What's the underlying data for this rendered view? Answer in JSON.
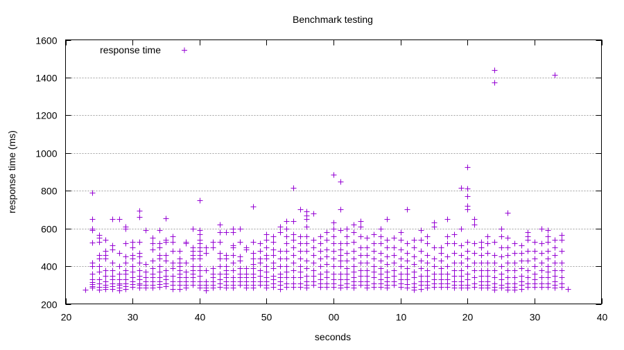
{
  "chart_data": {
    "type": "scatter",
    "title": "Benchmark testing",
    "xlabel": "seconds",
    "ylabel": "response time (ms)",
    "xlim": [
      20,
      100
    ],
    "ylim": [
      200,
      1600
    ],
    "x_ticks": [
      20,
      30,
      40,
      50,
      60,
      70,
      80,
      90,
      100
    ],
    "x_tick_labels": [
      "20",
      "30",
      "40",
      "50",
      "00",
      "10",
      "20",
      "30",
      "40"
    ],
    "y_ticks": [
      200,
      400,
      600,
      800,
      1000,
      1200,
      1400,
      1600
    ],
    "y_tick_labels": [
      "200",
      "400",
      "600",
      "800",
      "1000",
      "1200",
      "1400",
      "1600"
    ],
    "grid": "horizontal dotted",
    "legend": {
      "position": "top-left",
      "entries": [
        "response time"
      ]
    },
    "series": [
      {
        "name": "response time",
        "color": "#9400d3",
        "marker": "plus",
        "points_by_second": [
          {
            "x": 23,
            "y": [
              275
            ]
          },
          {
            "x": 24,
            "y": [
              790,
              650,
              600,
              590,
              525,
              420,
              400,
              360,
              330,
              315,
              305,
              295,
              285
            ]
          },
          {
            "x": 25,
            "y": [
              565,
              550,
              530,
              460,
              440,
              400,
              370,
              330,
              310,
              290,
              275
            ]
          },
          {
            "x": 26,
            "y": [
              540,
              480,
              460,
              440,
              380,
              350,
              320,
              300,
              290,
              280
            ]
          },
          {
            "x": 27,
            "y": [
              650,
              510,
              490,
              420,
              380,
              350,
              330,
              310,
              295,
              280
            ]
          },
          {
            "x": 28,
            "y": [
              650,
              470,
              400,
              360,
              330,
              310,
              300,
              285,
              270
            ]
          },
          {
            "x": 29,
            "y": [
              610,
              600,
              520,
              450,
              420,
              380,
              360,
              330,
              310,
              295,
              280
            ]
          },
          {
            "x": 30,
            "y": [
              530,
              500,
              460,
              440,
              400,
              370,
              340,
              320,
              305,
              290
            ]
          },
          {
            "x": 31,
            "y": [
              695,
              660,
              530,
              470,
              450,
              420,
              380,
              350,
              330,
              310,
              300,
              285
            ]
          },
          {
            "x": 32,
            "y": [
              590,
              410,
              370,
              340,
              320,
              300,
              285
            ]
          },
          {
            "x": 33,
            "y": [
              550,
              520,
              490,
              430,
              390,
              360,
              340,
              320,
              300,
              285
            ]
          },
          {
            "x": 34,
            "y": [
              590,
              520,
              500,
              460,
              440,
              400,
              370,
              340,
              320,
              305,
              290
            ]
          },
          {
            "x": 35,
            "y": [
              655,
              540,
              530,
              460,
              430,
              380,
              350,
              330,
              310,
              295
            ]
          },
          {
            "x": 36,
            "y": [
              560,
              530,
              480,
              420,
              390,
              350,
              320,
              300,
              280
            ]
          },
          {
            "x": 37,
            "y": [
              480,
              440,
              420,
              400,
              380,
              360,
              340,
              320,
              300,
              280
            ]
          },
          {
            "x": 38,
            "y": [
              530,
              520,
              420,
              370,
              340,
              320,
              300,
              285
            ]
          },
          {
            "x": 39,
            "y": [
              600,
              500,
              480,
              460,
              440,
              400,
              380,
              360,
              340,
              320,
              300
            ]
          },
          {
            "x": 40,
            "y": [
              750,
              590,
              570,
              540,
              520,
              500,
              480,
              460,
              440,
              400,
              380,
              350,
              320,
              300,
              285
            ]
          },
          {
            "x": 41,
            "y": [
              500,
              470,
              380,
              320,
              300,
              285,
              270
            ]
          },
          {
            "x": 42,
            "y": [
              530,
              500,
              390,
              360,
              340,
              320,
              300,
              285
            ]
          },
          {
            "x": 43,
            "y": [
              620,
              580,
              530,
              470,
              440,
              400,
              360,
              330,
              310,
              290
            ]
          },
          {
            "x": 44,
            "y": [
              580,
              460,
              440,
              400,
              380,
              360,
              340,
              320,
              300,
              285
            ]
          },
          {
            "x": 45,
            "y": [
              600,
              580,
              510,
              500,
              460,
              420,
              380,
              340,
              320,
              300,
              285
            ]
          },
          {
            "x": 46,
            "y": [
              600,
              530,
              450,
              430,
              390,
              360,
              340,
              320,
              300
            ]
          },
          {
            "x": 47,
            "y": [
              500,
              490,
              390,
              360,
              340,
              320,
              300,
              285
            ]
          },
          {
            "x": 48,
            "y": [
              715,
              530,
              470,
              440,
              410,
              390,
              360,
              340,
              320,
              300,
              285
            ]
          },
          {
            "x": 49,
            "y": [
              520,
              480,
              440,
              420,
              380,
              350,
              320,
              300
            ]
          },
          {
            "x": 50,
            "y": [
              570,
              540,
              500,
              460,
              440,
              400,
              370,
              340,
              320,
              300,
              285
            ]
          },
          {
            "x": 51,
            "y": [
              560,
              530,
              490,
              460,
              420,
              390,
              350,
              330,
              310,
              290
            ]
          },
          {
            "x": 52,
            "y": [
              610,
              580,
              480,
              440,
              400,
              360,
              340,
              320,
              300,
              280
            ]
          },
          {
            "x": 53,
            "y": [
              640,
              600,
              560,
              520,
              480,
              440,
              400,
              370,
              340,
              310,
              290
            ]
          },
          {
            "x": 54,
            "y": [
              815,
              640,
              570,
              540,
              500,
              460,
              420,
              380,
              340,
              310,
              290
            ]
          },
          {
            "x": 55,
            "y": [
              700,
              560,
              520,
              480,
              440,
              400,
              370,
              340,
              310,
              290
            ]
          },
          {
            "x": 56,
            "y": [
              690,
              670,
              650,
              610,
              560,
              520,
              480,
              430,
              390,
              350,
              320,
              300,
              285
            ]
          },
          {
            "x": 57,
            "y": [
              680,
              540,
              500,
              460,
              420,
              380,
              350,
              320,
              300
            ]
          },
          {
            "x": 58,
            "y": [
              560,
              520,
              480,
              440,
              400,
              360,
              330,
              310,
              290
            ]
          },
          {
            "x": 59,
            "y": [
              580,
              540,
              490,
              450,
              410,
              370,
              340,
              310,
              290
            ]
          },
          {
            "x": 60,
            "y": [
              885,
              630,
              600,
              560,
              520,
              480,
              440,
              400,
              360,
              330,
              310,
              290
            ]
          },
          {
            "x": 61,
            "y": [
              850,
              700,
              590,
              520,
              490,
              460,
              430,
              400,
              360,
              330,
              300,
              285
            ]
          },
          {
            "x": 62,
            "y": [
              600,
              560,
              520,
              470,
              430,
              390,
              360,
              330,
              310,
              290
            ]
          },
          {
            "x": 63,
            "y": [
              620,
              580,
              530,
              480,
              440,
              400,
              370,
              340,
              320,
              300,
              285
            ]
          },
          {
            "x": 64,
            "y": [
              640,
              610,
              560,
              500,
              460,
              420,
              380,
              350,
              320,
              300
            ]
          },
          {
            "x": 65,
            "y": [
              550,
              500,
              460,
              420,
              380,
              350,
              320,
              300,
              285
            ]
          },
          {
            "x": 66,
            "y": [
              570,
              520,
              480,
              440,
              400,
              370,
              340,
              310,
              290
            ]
          },
          {
            "x": 67,
            "y": [
              600,
              560,
              520,
              470,
              430,
              390,
              360,
              330,
              310,
              290
            ]
          },
          {
            "x": 68,
            "y": [
              650,
              540,
              500,
              450,
              410,
              370,
              340,
              320,
              300,
              285
            ]
          },
          {
            "x": 69,
            "y": [
              550,
              500,
              460,
              420,
              380,
              350,
              320,
              300
            ]
          },
          {
            "x": 70,
            "y": [
              580,
              540,
              490,
              440,
              400,
              360,
              330,
              310,
              290
            ]
          },
          {
            "x": 71,
            "y": [
              700,
              520,
              470,
              430,
              390,
              360,
              330,
              305,
              285
            ]
          },
          {
            "x": 72,
            "y": [
              540,
              500,
              450,
              410,
              370,
              340,
              310,
              290,
              275
            ]
          },
          {
            "x": 73,
            "y": [
              590,
              540,
              480,
              430,
              390,
              350,
              320,
              300,
              280
            ]
          },
          {
            "x": 74,
            "y": [
              560,
              520,
              460,
              420,
              380,
              350,
              320,
              300,
              285
            ]
          },
          {
            "x": 75,
            "y": [
              630,
              610,
              500,
              440,
              400,
              360,
              330,
              310,
              290
            ]
          },
          {
            "x": 76,
            "y": [
              500,
              470,
              430,
              390,
              360,
              330,
              310,
              290
            ]
          },
          {
            "x": 77,
            "y": [
              650,
              560,
              520,
              450,
              400,
              360,
              330,
              310,
              290
            ]
          },
          {
            "x": 78,
            "y": [
              570,
              520,
              470,
              420,
              380,
              350,
              320,
              300,
              285
            ]
          },
          {
            "x": 79,
            "y": [
              815,
              600,
              510,
              460,
              420,
              380,
              350,
              320,
              300,
              285
            ]
          },
          {
            "x": 80,
            "y": [
              925,
              810,
              770,
              720,
              700,
              530,
              480,
              440,
              400,
              360,
              330,
              300,
              285
            ]
          },
          {
            "x": 81,
            "y": [
              650,
              620,
              520,
              470,
              420,
              380,
              340,
              310,
              290
            ]
          },
          {
            "x": 82,
            "y": [
              530,
              500,
              460,
              420,
              380,
              350,
              320,
              300,
              285
            ]
          },
          {
            "x": 83,
            "y": [
              560,
              520,
              470,
              420,
              380,
              350,
              320,
              300,
              285
            ]
          },
          {
            "x": 84,
            "y": [
              1440,
              1375,
              530,
              460,
              420,
              380,
              340,
              310,
              290,
              275
            ]
          },
          {
            "x": 85,
            "y": [
              600,
              560,
              500,
              450,
              400,
              360,
              330,
              300,
              285
            ]
          },
          {
            "x": 86,
            "y": [
              685,
              550,
              500,
              460,
              420,
              380,
              340,
              310,
              290,
              275
            ]
          },
          {
            "x": 87,
            "y": [
              520,
              470,
              420,
              380,
              340,
              310,
              290,
              275
            ]
          },
          {
            "x": 88,
            "y": [
              510,
              470,
              430,
              390,
              350,
              320,
              300,
              280
            ]
          },
          {
            "x": 89,
            "y": [
              580,
              560,
              540,
              480,
              430,
              380,
              340,
              310,
              290
            ]
          },
          {
            "x": 90,
            "y": [
              530,
              480,
              440,
              400,
              360,
              330,
              310,
              290
            ]
          },
          {
            "x": 91,
            "y": [
              600,
              520,
              470,
              420,
              380,
              340,
              310,
              290
            ]
          },
          {
            "x": 92,
            "y": [
              590,
              560,
              530,
              480,
              440,
              400,
              370,
              340,
              310,
              290
            ]
          },
          {
            "x": 93,
            "y": [
              1415,
              540,
              500,
              460,
              420,
              380,
              350,
              320,
              300,
              285
            ]
          },
          {
            "x": 94,
            "y": [
              565,
              540,
              480,
              420,
              380,
              340,
              310,
              290
            ]
          },
          {
            "x": 95,
            "y": [
              280
            ]
          }
        ]
      }
    ]
  }
}
